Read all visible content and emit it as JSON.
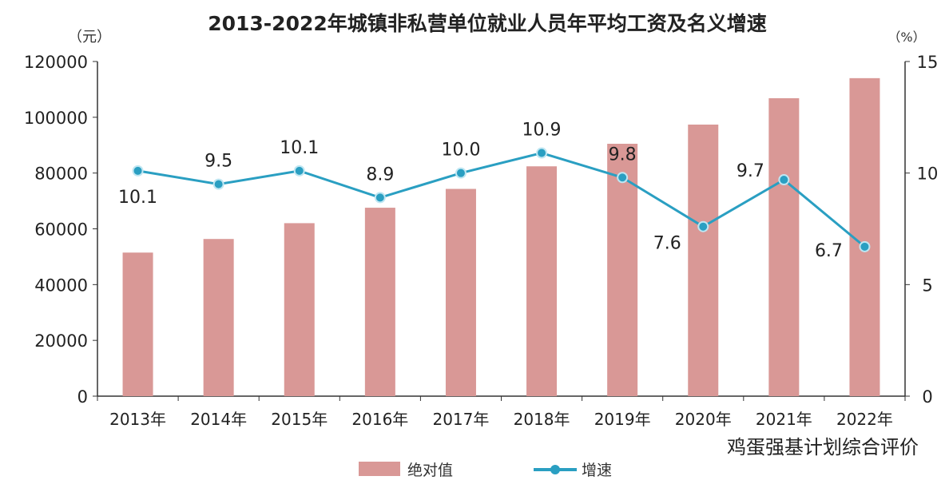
{
  "chart_data": {
    "type": "bar+line",
    "title": "2013-2022年城镇非私营单位就业人员年平均工资及名义增速",
    "ylabel_left": "（元）",
    "ylabel_right": "（%）",
    "categories": [
      "2013年",
      "2014年",
      "2015年",
      "2016年",
      "2017年",
      "2018年",
      "2019年",
      "2020年",
      "2021年",
      "2022年"
    ],
    "ylim_left": [
      0,
      120000
    ],
    "yticks_left": [
      "0",
      "20000",
      "40000",
      "60000",
      "80000",
      "100000",
      "120000"
    ],
    "ylim_right": [
      0,
      15
    ],
    "yticks_right": [
      "0",
      "5",
      "10",
      "15"
    ],
    "grid": false,
    "legend_position": "bottom",
    "series": [
      {
        "name": "绝对值",
        "type": "bar",
        "axis": "left",
        "color": "#d99896",
        "values": [
          51483,
          56360,
          62029,
          67569,
          74318,
          82413,
          90501,
          97379,
          106837,
          114029
        ]
      },
      {
        "name": "增速",
        "type": "line",
        "axis": "right",
        "color": "#2a9fc2",
        "values": [
          10.1,
          9.5,
          10.1,
          8.9,
          10.0,
          10.9,
          9.8,
          7.6,
          9.7,
          6.7
        ],
        "labels": [
          "10.1",
          "9.5",
          "10.1",
          "8.9",
          "10.0",
          "10.9",
          "9.8",
          "7.6",
          "9.7",
          "6.7"
        ]
      }
    ]
  },
  "watermark": "鸡蛋强基计划综合评价"
}
